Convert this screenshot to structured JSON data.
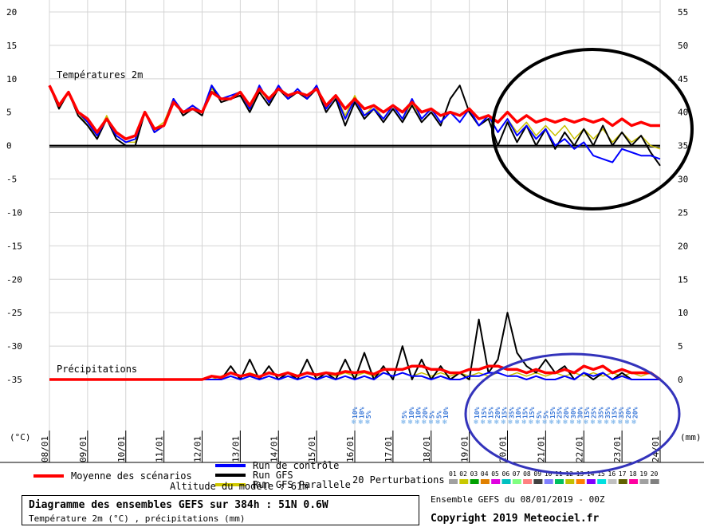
{
  "chart_data": {
    "type": "line",
    "title": "Diagramme des ensembles GEFS sur 384h : 51N 0.6W",
    "subtitle": "Température 2m (°C) , précipitations (mm)",
    "ensemble_label": "Ensemble GEFS du 08/01/2019 - 00Z",
    "copyright": "Copyright 2019 Meteociel.fr",
    "altitude_label": "Altitude du modèle : 61m",
    "left_axis": {
      "unit_label": "(°C)",
      "ticks": [
        "20",
        "15",
        "10",
        "5",
        "0",
        "-5",
        "-10",
        "-15",
        "-20",
        "-25",
        "-30",
        "-35"
      ],
      "ylim": [
        -35,
        20
      ]
    },
    "right_axis": {
      "unit_label": "(mm)",
      "ticks": [
        "55",
        "50",
        "45",
        "40",
        "35",
        "30",
        "25",
        "20",
        "15",
        "10",
        "5",
        "0"
      ],
      "ylim": [
        0,
        55
      ]
    },
    "x_labels": [
      "08/01",
      "09/01",
      "10/01",
      "11/01",
      "12/01",
      "13/01",
      "14/01",
      "15/01",
      "16/01",
      "17/01",
      "18/01",
      "19/01",
      "20/01",
      "21/01",
      "22/01",
      "23/01",
      "24/01"
    ],
    "section_labels": {
      "temp": "Températures 2m",
      "precip": "Précipitations"
    },
    "legend": {
      "mean": "Moyenne des scénarios",
      "control": "Run de contrôle",
      "gfs": "Run GFS",
      "parallel": "Run GFS Parallele",
      "perturbations": "20 Perturbations",
      "pert_numbers": [
        "01",
        "02",
        "03",
        "04",
        "05",
        "06",
        "07",
        "08",
        "09",
        "10",
        "11",
        "12",
        "13",
        "14",
        "15",
        "16",
        "17",
        "18",
        "19",
        "20"
      ],
      "pert_colors": [
        "#a0a0a0",
        "#c8c800",
        "#00a000",
        "#e08000",
        "#e000e0",
        "#00c0c0",
        "#80ff80",
        "#ff8080",
        "#404040",
        "#8080ff",
        "#00c060",
        "#c0c000",
        "#ff8000",
        "#8000ff",
        "#00e0e0",
        "#c0c0c0",
        "#606000",
        "#ff00a0",
        "#a0a0a0",
        "#808080"
      ]
    },
    "snow_x": [
      16.0,
      16.18,
      16.36,
      17.3,
      17.48,
      17.66,
      17.84,
      18.02,
      18.2,
      18.38,
      19.2,
      19.38,
      19.56,
      19.74,
      19.92,
      20.1,
      20.28,
      20.46,
      20.64,
      20.82,
      21.0,
      21.18,
      21.36,
      21.54,
      21.72,
      21.9,
      22.08,
      22.26,
      22.44,
      22.62,
      22.8,
      22.98,
      23.16,
      23.34
    ],
    "snow_percents": [
      "10%",
      "10%",
      "5%",
      "5%",
      "10%",
      "10%",
      "20%",
      "5%",
      "5%",
      "10%",
      "10%",
      "15%",
      "15%",
      "20%",
      "15%",
      "35%",
      "10%",
      "15%",
      "15%",
      "5%",
      "5%",
      "15%",
      "25%",
      "20%",
      "30%",
      "30%",
      "15%",
      "25%",
      "35%",
      "35%",
      "15%",
      "35%",
      "20%",
      "20%"
    ],
    "temp_x": [
      8.0,
      8.25,
      8.5,
      8.75,
      9.0,
      9.25,
      9.5,
      9.75,
      10.0,
      10.25,
      10.5,
      10.75,
      11.0,
      11.25,
      11.5,
      11.75,
      12.0,
      12.25,
      12.5,
      12.75,
      13.0,
      13.25,
      13.5,
      13.75,
      14.0,
      14.25,
      14.5,
      14.75,
      15.0,
      15.25,
      15.5,
      15.75,
      16.0,
      16.25,
      16.5,
      16.75,
      17.0,
      17.25,
      17.5,
      17.75,
      18.0,
      18.25,
      18.5,
      18.75,
      19.0,
      19.25,
      19.5,
      19.75,
      20.0,
      20.25,
      20.5,
      20.75,
      21.0,
      21.25,
      21.5,
      21.75,
      22.0,
      22.25,
      22.5,
      22.75,
      23.0,
      23.25,
      23.5,
      23.75,
      24.0
    ],
    "temp_series": [
      {
        "name": "Moyenne des scénarios",
        "values": [
          9,
          6,
          8,
          5,
          4,
          2,
          4,
          2,
          1,
          1.5,
          5,
          2.5,
          3,
          6.5,
          5,
          5.5,
          5,
          8,
          7,
          7,
          8,
          6,
          8.5,
          7,
          8.5,
          7.5,
          8,
          7.5,
          8.5,
          6,
          7.5,
          5.5,
          7,
          5.5,
          6,
          5,
          6,
          5,
          6.5,
          5,
          5.5,
          4.5,
          5,
          4.5,
          5.5,
          4,
          4.5,
          3.5,
          5,
          3.5,
          4.5,
          3.5,
          4,
          3.5,
          4,
          3.5,
          4,
          3.5,
          4,
          3,
          4,
          3,
          3.5,
          3,
          3
        ]
      },
      {
        "name": "Run de contrôle",
        "values": [
          9,
          6,
          8,
          5,
          3.5,
          1.5,
          4,
          1.5,
          0.5,
          1,
          5,
          2,
          3,
          7,
          5,
          6,
          5,
          9,
          7,
          7.5,
          8,
          5.5,
          9,
          6.5,
          9,
          7,
          8.5,
          7,
          9,
          5.5,
          7.5,
          4,
          7,
          4.5,
          5.5,
          4,
          6,
          4,
          7,
          4,
          5.5,
          3.5,
          5,
          3.5,
          5.5,
          3,
          4.5,
          2,
          4,
          1.5,
          3,
          1,
          2.5,
          0,
          1,
          -0.5,
          0.5,
          -1.5,
          -2,
          -2.5,
          -0.5,
          -1,
          -1.5,
          -1.5,
          -2
        ]
      },
      {
        "name": "Run GFS",
        "values": [
          9,
          5.5,
          8,
          4.5,
          3,
          1,
          4,
          1,
          0,
          0,
          5,
          2,
          3,
          7,
          4.5,
          5.5,
          4.5,
          9,
          6.5,
          7,
          7.5,
          5,
          8,
          6,
          8.5,
          7,
          8,
          7,
          8.5,
          5,
          7,
          3,
          6.5,
          4,
          5.5,
          3.5,
          5.5,
          3.5,
          6,
          3.5,
          5,
          3,
          7,
          9,
          5,
          3,
          4,
          0,
          3.5,
          0.5,
          3,
          0,
          2.5,
          -0.5,
          2,
          0,
          2.5,
          0,
          3,
          0,
          2,
          0,
          1.5,
          -1,
          -3
        ]
      },
      {
        "name": "Run GFS Parallele",
        "values": [
          9,
          5.5,
          8,
          5,
          3,
          1.5,
          4.5,
          1.5,
          0.5,
          0.5,
          5,
          2.5,
          3.5,
          7,
          5,
          6,
          5,
          8.5,
          7,
          7,
          8,
          5.5,
          8.5,
          6.5,
          9,
          7,
          8.5,
          7,
          9,
          5.5,
          7.5,
          4.5,
          7.5,
          4.5,
          6,
          4,
          6,
          4,
          6.5,
          4,
          5.5,
          3.5,
          5,
          3.5,
          5.5,
          3,
          4.5,
          2,
          4,
          2,
          3.5,
          1.5,
          3,
          1.5,
          3,
          1,
          2.5,
          1,
          2.5,
          0.5,
          2,
          0.5,
          1.5,
          0,
          -0.5
        ]
      }
    ],
    "precip_x": [
      8.0,
      9.0,
      10.0,
      11.0,
      12.0,
      12.25,
      12.5,
      12.75,
      13.0,
      13.25,
      13.5,
      13.75,
      14.0,
      14.25,
      14.5,
      14.75,
      15.0,
      15.25,
      15.5,
      15.75,
      16.0,
      16.25,
      16.5,
      16.75,
      17.0,
      17.25,
      17.5,
      17.75,
      18.0,
      18.25,
      18.5,
      18.75,
      19.0,
      19.25,
      19.5,
      19.75,
      20.0,
      20.25,
      20.5,
      20.75,
      21.0,
      21.25,
      21.5,
      21.75,
      22.0,
      22.25,
      22.5,
      22.75,
      23.0,
      23.25,
      23.5,
      23.75,
      24.0
    ],
    "precip_series": [
      {
        "name": "Moyenne des scénarios",
        "values": [
          0,
          0,
          0,
          0,
          0,
          0.5,
          0.3,
          1,
          0.5,
          0.8,
          0.4,
          1,
          0.6,
          1,
          0.5,
          1,
          0.7,
          1,
          0.8,
          1.2,
          1,
          1.2,
          0.8,
          1.5,
          1.5,
          1.5,
          2,
          2,
          1.5,
          1.5,
          1,
          1,
          1.5,
          1.5,
          2,
          2,
          1.5,
          1.5,
          1,
          1.5,
          1,
          1,
          1.5,
          1,
          2,
          1.5,
          2,
          1,
          1.5,
          1,
          1,
          1,
          0
        ]
      },
      {
        "name": "Run de contrôle",
        "values": [
          0,
          0,
          0,
          0,
          0,
          0,
          0,
          0.5,
          0,
          0.5,
          0,
          0.5,
          0,
          0.5,
          0,
          0.5,
          0,
          0.5,
          0,
          0.5,
          0,
          0.5,
          0,
          1,
          0.5,
          1,
          0.5,
          0.5,
          0,
          0.5,
          0,
          0,
          0.5,
          0.5,
          1,
          1,
          0.5,
          0.5,
          0,
          0.5,
          0,
          0,
          0.5,
          0,
          1,
          0.5,
          1,
          0,
          0.5,
          0,
          0,
          0,
          0
        ]
      },
      {
        "name": "Run GFS",
        "values": [
          0,
          0,
          0,
          0,
          0,
          0,
          0,
          2,
          0,
          3,
          0,
          2,
          0,
          1,
          0,
          3,
          0,
          1,
          0,
          3,
          0,
          4,
          0,
          2,
          0,
          5,
          0,
          3,
          0,
          2,
          0,
          1,
          0,
          9,
          1,
          3,
          10,
          4,
          2,
          1,
          3,
          1,
          2,
          0,
          1,
          0,
          1,
          0,
          1,
          0,
          0,
          0,
          0
        ]
      },
      {
        "name": "Run GFS Parallele",
        "values": [
          0,
          0,
          0,
          0,
          0,
          0,
          0.5,
          1,
          0.5,
          1,
          0.5,
          1,
          0.5,
          1,
          0.5,
          1,
          0.5,
          1,
          0.5,
          1,
          0.5,
          1,
          0.5,
          1,
          0.5,
          1,
          0.5,
          1,
          0.5,
          1,
          0.5,
          1,
          0.5,
          1,
          0.5,
          1,
          0.5,
          1,
          0.5,
          1,
          0.5,
          1,
          0.5,
          1,
          0.5,
          1,
          0.5,
          1,
          0.5,
          1,
          0.5,
          1,
          0
        ]
      }
    ]
  }
}
